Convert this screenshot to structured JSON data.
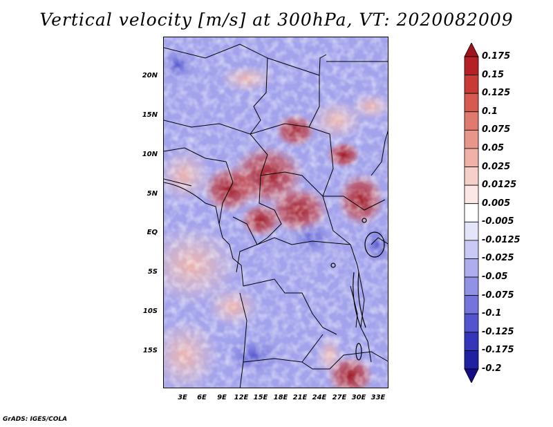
{
  "title": "Vertical velocity [m/s] at 300hPa, VT: 2020082009",
  "footer": "GrADS: IGES/COLA",
  "lat_labels": [
    "20N",
    "15N",
    "10N",
    "5N",
    "EQ",
    "5S",
    "10S",
    "15S"
  ],
  "lon_labels": [
    "3E",
    "6E",
    "9E",
    "12E",
    "15E",
    "18E",
    "21E",
    "24E",
    "27E",
    "30E",
    "33E"
  ],
  "colorbar": {
    "labels": [
      "0.175",
      "0.15",
      "0.125",
      "0.1",
      "0.075",
      "0.05",
      "0.025",
      "0.0125",
      "0.005",
      "-0.005",
      "-0.0125",
      "-0.025",
      "-0.05",
      "-0.075",
      "-0.1",
      "-0.125",
      "-0.175",
      "-0.2"
    ],
    "colors": [
      "#a0141e",
      "#b51f26",
      "#c83a36",
      "#d65a50",
      "#e07a6e",
      "#e9968a",
      "#f0b2a8",
      "#f6cfc8",
      "#fbe8e4",
      "#ffffff",
      "#e4e4fb",
      "#c9c9f5",
      "#aeaeee",
      "#9191e6",
      "#7474dc",
      "#5454ce",
      "#3535ba",
      "#2020a2",
      "#140d86"
    ]
  }
}
